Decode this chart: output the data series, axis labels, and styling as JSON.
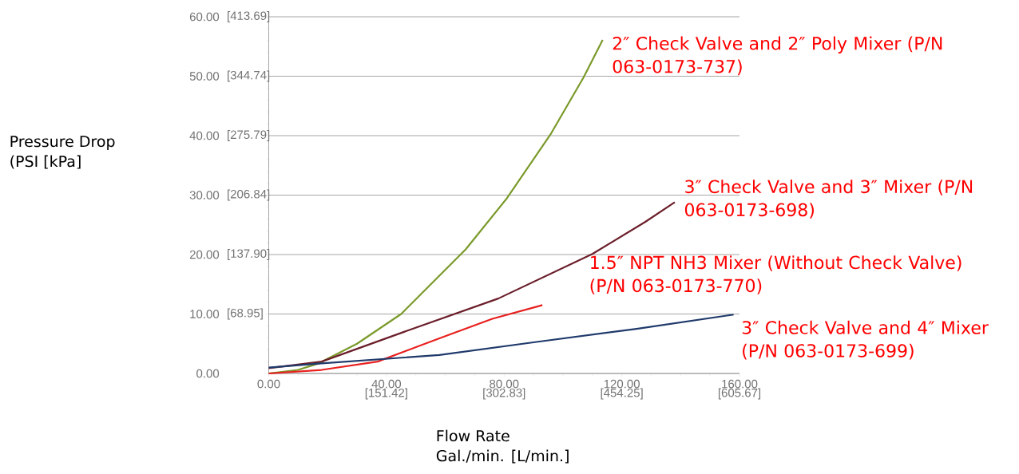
{
  "chart_data": {
    "type": "line",
    "xlabel": "Flow Rate\nGal./min. [L/min.]",
    "ylabel": "Pressure Drop\n(PSI [kPa]",
    "xlim": [
      0,
      160
    ],
    "ylim": [
      0,
      60
    ],
    "xticks": [
      {
        "value": 0,
        "label": "0.00"
      },
      {
        "value": 40,
        "label": "40.00"
      },
      {
        "value": 80,
        "label": "80.00"
      },
      {
        "value": 120,
        "label": "120.00"
      },
      {
        "value": 160,
        "label": "160.00"
      }
    ],
    "x2lim": [
      0,
      605.67
    ],
    "x2ticks": [
      {
        "value": 151.42,
        "label": "[151.42]"
      },
      {
        "value": 302.83,
        "label": "[302.83]"
      },
      {
        "value": 454.25,
        "label": "[454.25]"
      },
      {
        "value": 605.67,
        "label": "[605.67]"
      }
    ],
    "yticks": [
      {
        "value": 0,
        "label": "0.00"
      },
      {
        "value": 10,
        "label": "10.00"
      },
      {
        "value": 20,
        "label": "20.00"
      },
      {
        "value": 30,
        "label": "30.00"
      },
      {
        "value": 40,
        "label": "40.00"
      },
      {
        "value": 50,
        "label": "50.00"
      },
      {
        "value": 60,
        "label": "60.00"
      }
    ],
    "y2lim": [
      0,
      413.69
    ],
    "y2ticks": [
      {
        "value": 68.95,
        "label": "[68.95]"
      },
      {
        "value": 137.9,
        "label": "[137.90]"
      },
      {
        "value": 206.84,
        "label": "[206.84]"
      },
      {
        "value": 275.79,
        "label": "[275.79]"
      },
      {
        "value": 344.74,
        "label": "[344.74]"
      },
      {
        "value": 413.69,
        "label": "[413.69]"
      }
    ],
    "grid": "y",
    "marker": "none",
    "line_style": "solid",
    "series": [
      {
        "name": "2″ Check Valve and 2″ Poly Mixer (P/N\n063-0173-737)",
        "color": "#7a9a2a",
        "x": [
          0,
          10,
          17,
          30,
          45,
          67,
          81,
          96,
          107,
          113.5
        ],
        "values": [
          0,
          0.6,
          1.7,
          5,
          10,
          20.9,
          29.5,
          40.4,
          49.8,
          56.1
        ]
      },
      {
        "name": "3″ Check Valve and 3″ Mixer (P/N\n063-0173-698)",
        "color": "#6b1f2a",
        "x": [
          0,
          18,
          46,
          78,
          110,
          128,
          138
        ],
        "values": [
          0.9,
          2.0,
          7.0,
          12.6,
          20.1,
          25.5,
          28.8
        ]
      },
      {
        "name": "1.5″ NPT NH3 Mixer (Without Check Valve)\n(P/N 063-0173-770)",
        "color": "#e8201f",
        "x": [
          0,
          18,
          37,
          58,
          76,
          93
        ],
        "values": [
          0,
          0.6,
          2.0,
          5.9,
          9.2,
          11.5
        ]
      },
      {
        "name": "3″ Check Valve and 4″ Mixer\n(P/N 063-0173-699)",
        "color": "#1f3a6b",
        "x": [
          0,
          18,
          58,
          91,
          125,
          158
        ],
        "values": [
          1.0,
          1.7,
          3.1,
          5.3,
          7.5,
          9.9
        ]
      }
    ]
  }
}
